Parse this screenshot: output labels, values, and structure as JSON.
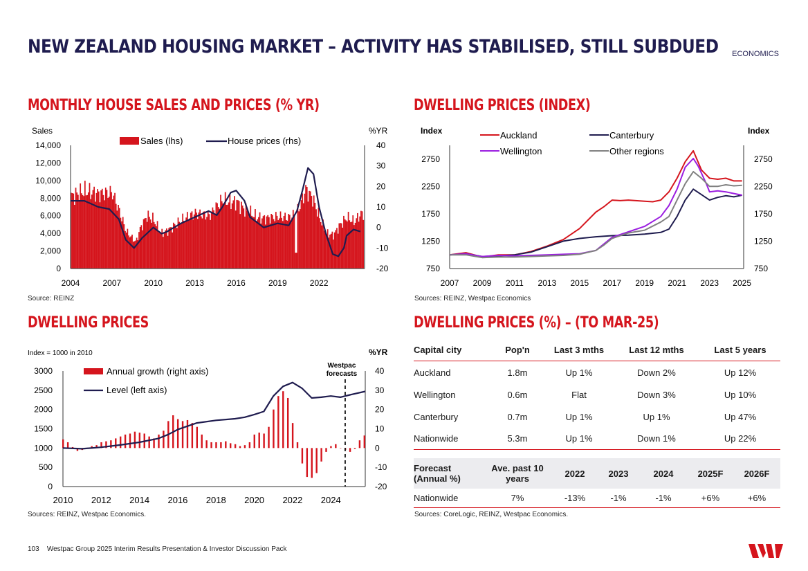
{
  "header": {
    "title": "NEW ZEALAND HOUSING MARKET – ACTIVITY HAS STABILISED, STILL SUBDUED",
    "tag": "ECONOMICS"
  },
  "footer": {
    "page": "103",
    "text": "Westpac Group 2025 Interim Results Presentation & Investor Discussion Pack"
  },
  "brand_color": "#d5151d",
  "navy": "#1f1c4f",
  "chart_data": [
    {
      "id": "sales",
      "type": "bar",
      "section_title": "MONTHLY HOUSE SALES AND PRICES (% YR)",
      "source": "Source: REINZ",
      "ylabel_left": "Sales",
      "ylabel_right": "%YR",
      "ylim_left": [
        0,
        14000
      ],
      "ylim_right": [
        -20,
        40
      ],
      "yticks_left": [
        "0",
        "2,000",
        "4,000",
        "6,000",
        "8,000",
        "10,000",
        "12,000",
        "14,000"
      ],
      "yticks_right": [
        "-20",
        "-10",
        "0",
        "10",
        "20",
        "30",
        "40"
      ],
      "xticks": [
        "2004",
        "2007",
        "2010",
        "2013",
        "2016",
        "2019",
        "2022"
      ],
      "xlim": [
        2004,
        2025.3
      ],
      "legend": [
        "Sales (lhs)",
        "House prices (rhs)"
      ],
      "sales": {
        "x": [
          2004,
          2005,
          2006,
          2007,
          2007.5,
          2008,
          2008.7,
          2009,
          2009.5,
          2010,
          2010.5,
          2011,
          2012,
          2013,
          2014,
          2014.5,
          2015,
          2015.5,
          2016,
          2016.5,
          2017,
          2017.5,
          2018,
          2019,
          2019.8,
          2020.3,
          2020.6,
          2021,
          2021.5,
          2022,
          2022.5,
          2023,
          2023.5,
          2024,
          2024.5,
          2025
        ],
        "values": [
          8200,
          8800,
          8500,
          8600,
          6500,
          4200,
          3000,
          4500,
          6000,
          5500,
          4000,
          4300,
          5500,
          6300,
          6000,
          7000,
          7800,
          7500,
          7600,
          6800,
          6300,
          5800,
          5700,
          5900,
          5800,
          6300,
          7200,
          9000,
          8000,
          5800,
          4000,
          3800,
          5000,
          5800,
          5300,
          6200
        ]
      },
      "prices": {
        "x": [
          2004,
          2005,
          2006,
          2006.8,
          2007.5,
          2008,
          2008.6,
          2009.2,
          2010,
          2010.6,
          2011,
          2012,
          2013,
          2014,
          2014.6,
          2015,
          2015.6,
          2016,
          2016.6,
          2017,
          2018,
          2019,
          2019.8,
          2020.4,
          2020.8,
          2021.2,
          2021.6,
          2022,
          2022.5,
          2023,
          2023.4,
          2023.8,
          2024,
          2024.5,
          2025
        ],
        "values": [
          13,
          13,
          10,
          9,
          4,
          -6,
          -10,
          -5,
          0,
          -3,
          -2,
          2,
          5,
          8,
          6,
          10,
          17,
          18,
          13,
          5,
          0,
          2,
          1,
          8,
          18,
          29,
          26,
          10,
          -3,
          -13,
          -14,
          -10,
          -4,
          -1,
          -2
        ]
      }
    },
    {
      "id": "index",
      "type": "line",
      "section_title": "DWELLING PRICES (INDEX)",
      "source": "Sources: REINZ, Westpac Economics",
      "ylabel_left": "Index",
      "ylabel_right": "Index",
      "ylim": [
        750,
        3000
      ],
      "yticks": [
        "750",
        "1250",
        "1750",
        "2250",
        "2750"
      ],
      "xticks": [
        "2007",
        "2009",
        "2011",
        "2013",
        "2015",
        "2017",
        "2019",
        "2021",
        "2023",
        "2025"
      ],
      "xlim": [
        2007,
        2025.1
      ],
      "series": [
        {
          "name": "Auckland",
          "color": "#d5151d",
          "x": [
            2007,
            2008,
            2009,
            2010,
            2011,
            2012,
            2013,
            2014,
            2015,
            2016,
            2016.5,
            2017,
            2017.5,
            2018,
            2019,
            2019.5,
            2020,
            2020.5,
            2021,
            2021.5,
            2022,
            2022.5,
            2023,
            2023.5,
            2024,
            2024.5,
            2025
          ],
          "values": [
            1000,
            1040,
            960,
            1000,
            1000,
            1060,
            1160,
            1280,
            1480,
            1780,
            1880,
            2000,
            1990,
            2000,
            1980,
            1970,
            2000,
            2150,
            2400,
            2700,
            2900,
            2550,
            2400,
            2380,
            2400,
            2350,
            2350
          ]
        },
        {
          "name": "Canterbury",
          "color": "#1f1c4f",
          "x": [
            2007,
            2008,
            2009,
            2010,
            2011,
            2012,
            2013,
            2014,
            2015,
            2016,
            2017,
            2018,
            2019,
            2020,
            2020.5,
            2021,
            2021.5,
            2022,
            2022.5,
            2023,
            2023.5,
            2024,
            2024.5,
            2025
          ],
          "values": [
            1000,
            1020,
            970,
            980,
            1000,
            1050,
            1150,
            1250,
            1300,
            1330,
            1350,
            1360,
            1380,
            1410,
            1470,
            1700,
            2000,
            2200,
            2100,
            2000,
            2050,
            2080,
            2060,
            2090
          ]
        },
        {
          "name": "Wellington",
          "color": "#9b1ee0",
          "x": [
            2007,
            2008,
            2009,
            2010,
            2011,
            2012,
            2013,
            2014,
            2015,
            2016,
            2016.5,
            2017,
            2018,
            2019,
            2020,
            2020.5,
            2021,
            2021.5,
            2022,
            2022.3,
            2022.8,
            2023,
            2023.5,
            2024,
            2024.5,
            2025
          ],
          "values": [
            1000,
            1020,
            970,
            990,
            980,
            990,
            1000,
            1010,
            1020,
            1080,
            1200,
            1320,
            1420,
            1520,
            1700,
            1900,
            2200,
            2600,
            2760,
            2620,
            2300,
            2150,
            2170,
            2150,
            2120,
            2090
          ]
        },
        {
          "name": "Other regions",
          "color": "#808080",
          "x": [
            2007,
            2008,
            2009,
            2010,
            2011,
            2012,
            2013,
            2014,
            2015,
            2016,
            2016.5,
            2017,
            2018,
            2019,
            2020,
            2020.5,
            2021,
            2021.5,
            2022,
            2022.5,
            2023,
            2023.5,
            2024,
            2024.5,
            2025
          ],
          "values": [
            1000,
            1000,
            950,
            960,
            960,
            970,
            980,
            990,
            1010,
            1080,
            1180,
            1300,
            1400,
            1450,
            1600,
            1700,
            2000,
            2300,
            2520,
            2400,
            2250,
            2250,
            2280,
            2260,
            2270
          ]
        }
      ]
    },
    {
      "id": "dwelling",
      "type": "bar",
      "section_title": "DWELLING PRICES",
      "source": "Sources: REINZ, Westpac Economics.",
      "note_left": "Index = 1000 in 2010",
      "ylabel_right": "%YR",
      "forecast_label": [
        "Westpac",
        "forecasts"
      ],
      "ylim_left": [
        0,
        3000
      ],
      "ylim_right": [
        -20,
        40
      ],
      "yticks_left": [
        "0",
        "500",
        "1000",
        "1500",
        "2000",
        "2500",
        "3000"
      ],
      "yticks_right": [
        "-20",
        "-10",
        "0",
        "10",
        "20",
        "30",
        "40"
      ],
      "xticks": [
        "2010",
        "2012",
        "2014",
        "2016",
        "2018",
        "2020",
        "2022",
        "2024"
      ],
      "xlim": [
        2010,
        2025.8
      ],
      "forecast_x": 2024.75,
      "legend": [
        "Annual growth (right axis)",
        "Level (left axis)"
      ],
      "growth": {
        "x": [
          2010,
          2010.25,
          2010.5,
          2010.75,
          2011,
          2011.25,
          2011.5,
          2011.75,
          2012,
          2012.25,
          2012.5,
          2012.75,
          2013,
          2013.25,
          2013.5,
          2013.75,
          2014,
          2014.25,
          2014.5,
          2014.75,
          2015,
          2015.25,
          2015.5,
          2015.75,
          2016,
          2016.25,
          2016.5,
          2016.75,
          2017,
          2017.25,
          2017.5,
          2017.75,
          2018,
          2018.25,
          2018.5,
          2018.75,
          2019,
          2019.25,
          2019.5,
          2019.75,
          2020,
          2020.25,
          2020.5,
          2020.75,
          2021,
          2021.25,
          2021.5,
          2021.75,
          2022,
          2022.25,
          2022.5,
          2022.75,
          2023,
          2023.25,
          2023.5,
          2023.75,
          2024,
          2024.25,
          2024.5,
          2024.75,
          2025,
          2025.25,
          2025.5,
          2025.75
        ],
        "values": [
          4.5,
          3,
          0.5,
          -1.5,
          -1,
          0,
          1,
          1.5,
          3,
          3.5,
          4,
          5,
          6,
          7,
          7.5,
          8.5,
          8,
          7.5,
          6,
          5,
          7,
          9,
          14,
          17,
          15,
          14,
          14.5,
          13,
          11,
          7,
          4,
          3,
          3,
          3,
          3.5,
          2.5,
          2,
          1,
          1.5,
          3,
          7,
          8,
          7.5,
          11,
          20,
          27,
          29.5,
          26,
          13,
          3,
          -8,
          -15,
          -15.5,
          -13,
          -7,
          -2,
          1,
          2,
          0,
          -1,
          -2,
          -0.5,
          4,
          6.5
        ]
      },
      "level": {
        "x": [
          2010,
          2011,
          2012,
          2013,
          2014,
          2015,
          2015.5,
          2016,
          2017,
          2018,
          2019,
          2019.5,
          2020,
          2020.5,
          2021,
          2021.5,
          2022,
          2022.5,
          2023,
          2023.5,
          2024,
          2024.5,
          2025,
          2025.8
        ],
        "values": [
          1000,
          980,
          1020,
          1080,
          1150,
          1250,
          1350,
          1480,
          1650,
          1720,
          1760,
          1800,
          1870,
          1950,
          2350,
          2600,
          2700,
          2550,
          2300,
          2320,
          2350,
          2320,
          2380,
          2470
        ]
      }
    }
  ],
  "table": {
    "section_title": "DWELLING PRICES (%) – (TO MAR-25)",
    "headers": [
      "Capital city",
      "Pop'n",
      "Last 3 mths",
      "Last 12 mths",
      "Last 5 years"
    ],
    "rows": [
      [
        "Auckland",
        "1.8m",
        "Up 1%",
        "Down 2%",
        "Up 12%"
      ],
      [
        "Wellington",
        "0.6m",
        "Flat",
        "Down 3%",
        "Up 10%"
      ],
      [
        "Canterbury",
        "0.7m",
        "Up 1%",
        "Up 1%",
        "Up 47%"
      ],
      [
        "Nationwide",
        "5.3m",
        "Up 1%",
        "Down 1%",
        "Up 22%"
      ]
    ],
    "forecast_headers": [
      "Forecast (Annual %)",
      "Ave. past 10 years",
      "2022",
      "2023",
      "2024",
      "2025F",
      "2026F"
    ],
    "forecast_row": [
      "Nationwide",
      "7%",
      "-13%",
      "-1%",
      "-1%",
      "+6%",
      "+6%"
    ],
    "source": "Sources: CoreLogic, REINZ, Westpac Economics."
  }
}
